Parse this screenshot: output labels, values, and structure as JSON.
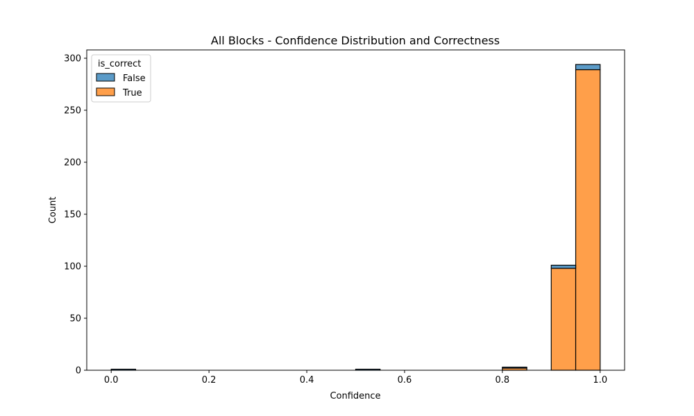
{
  "chart_data": {
    "type": "bar",
    "title": "All Blocks - Confidence Distribution and Correctness",
    "xlabel": "Confidence",
    "ylabel": "Count",
    "xlim": [
      -0.05,
      1.05
    ],
    "ylim": [
      0,
      308
    ],
    "x_ticks": [
      0.0,
      0.2,
      0.4,
      0.6,
      0.8,
      1.0
    ],
    "x_tick_labels": [
      "0.0",
      "0.2",
      "0.4",
      "0.6",
      "0.8",
      "1.0"
    ],
    "y_ticks": [
      0,
      50,
      100,
      150,
      200,
      250,
      300
    ],
    "y_tick_labels": [
      "0",
      "50",
      "100",
      "150",
      "200",
      "250",
      "300"
    ],
    "stacked": true,
    "bin_width": 0.05,
    "bin_starts": [
      0.0,
      0.5,
      0.8,
      0.9,
      0.95
    ],
    "series": [
      {
        "name": "True",
        "color": "#ff9f4a",
        "values": [
          0,
          0,
          2,
          98,
          289
        ]
      },
      {
        "name": "False",
        "color": "#5b9bc8",
        "values": [
          1,
          1,
          1,
          3,
          5
        ]
      }
    ],
    "legend": {
      "title": "is_correct",
      "placement": "top-left",
      "entries": [
        "False",
        "True"
      ],
      "colors": [
        "#5b9bc8",
        "#ff9f4a"
      ]
    },
    "grid": false
  }
}
